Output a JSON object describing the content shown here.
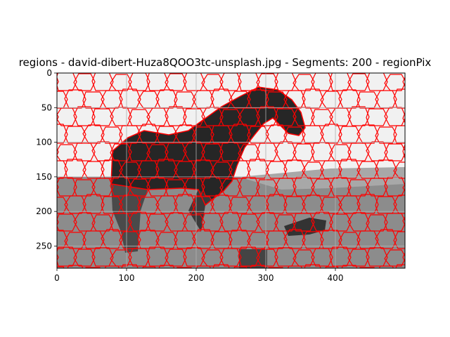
{
  "chart_data": {
    "type": "heatmap",
    "title": "regions - david-dibert-Huza8QOO3tc-unsplash.jpg - Segments: 200 - regionPix",
    "image_width": 500,
    "image_height": 282,
    "xlim": [
      0,
      500
    ],
    "ylim": [
      282,
      0
    ],
    "x_ticks": [
      0,
      100,
      200,
      300,
      400
    ],
    "y_ticks": [
      0,
      50,
      100,
      150,
      200,
      250
    ],
    "grid": true,
    "boundary_color": "#ff0000",
    "grid_color": "#b0b0b0",
    "segment_count": 200,
    "colormap": "gray"
  }
}
